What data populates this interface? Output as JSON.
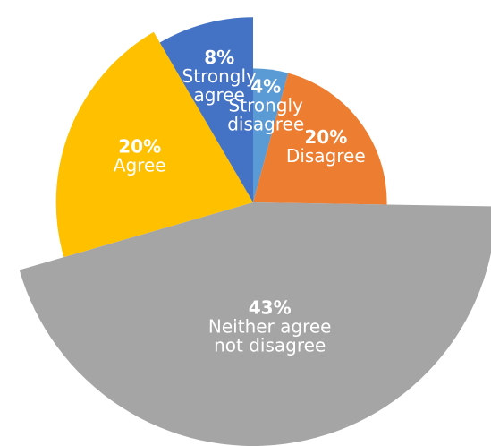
{
  "chart_data": {
    "type": "pie",
    "title": "",
    "start_angle_deg": 90,
    "direction": "clockwise",
    "slices": [
      {
        "pct_label": "4%",
        "label_lines": [
          "Strongly",
          "disagree"
        ],
        "value": 4,
        "color": "#5B9BD5",
        "radius_ratio": 0.55
      },
      {
        "pct_label": "20%",
        "label_lines": [
          "Disagree"
        ],
        "value": 20,
        "color": "#ED7D31",
        "radius_ratio": 0.55
      },
      {
        "pct_label": "43%",
        "label_lines": [
          "Neither agree",
          "not disagree"
        ],
        "value": 43,
        "color": "#A5A5A5",
        "radius_ratio": 1.0
      },
      {
        "pct_label": "20%",
        "label_lines": [
          "Agree"
        ],
        "value": 20,
        "color": "#FFC000",
        "radius_ratio": 0.81
      },
      {
        "pct_label": "8%",
        "label_lines": [
          "Strongly",
          "agree"
        ],
        "value": 8,
        "color": "#4472C4",
        "radius_ratio": 0.76
      }
    ]
  }
}
